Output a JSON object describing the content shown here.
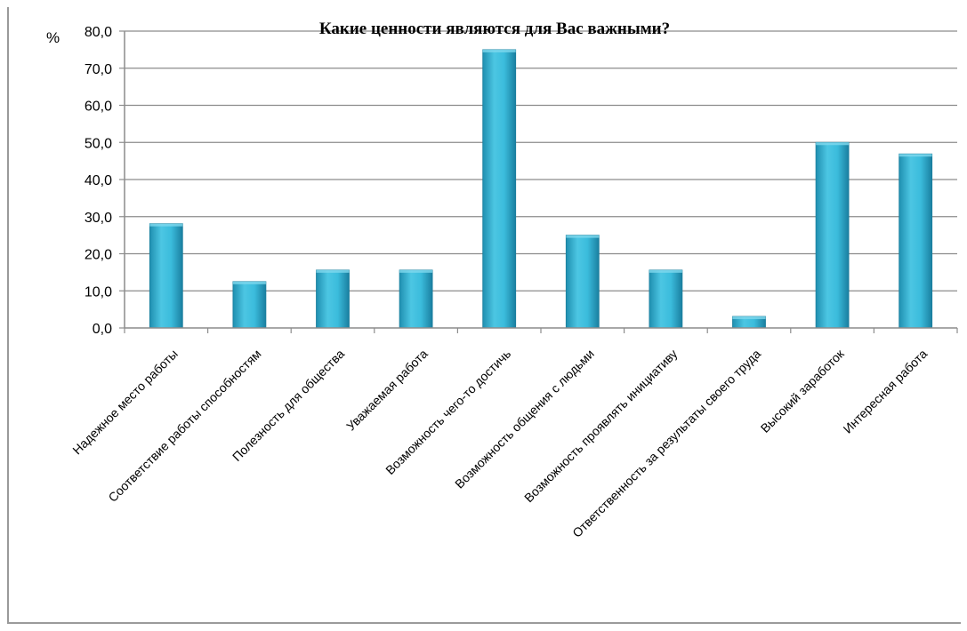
{
  "chart_data": {
    "type": "bar",
    "title": "Какие ценности являются для Вас важными?",
    "ylabel": "%",
    "xlabel": "",
    "ylim": [
      0,
      80
    ],
    "y_ticks": [
      "0,0",
      "10,0",
      "20,0",
      "30,0",
      "40,0",
      "50,0",
      "60,0",
      "70,0",
      "80,0"
    ],
    "grid": true,
    "legend": "none",
    "categories": [
      "Надежное место работы",
      "Соответствие работы способностям",
      "Полезность для общества",
      "Уважаемая работа",
      "Возможность чего-то достичь",
      "Возможность общения с людьми",
      "Возможность проявлять инициативу",
      "Ответственность за результаты своего труда",
      "Высокий заработок",
      "Интересная работа"
    ],
    "values": [
      28.1,
      12.5,
      15.6,
      15.6,
      75.0,
      25.0,
      15.6,
      3.1,
      50.0,
      46.9
    ],
    "bar_color": "#31b6d6"
  }
}
